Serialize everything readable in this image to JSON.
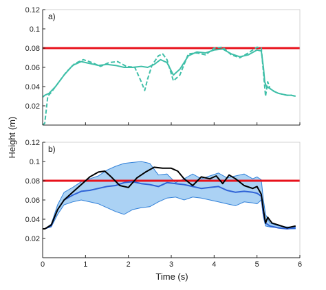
{
  "chart_data": [
    {
      "panel_label": "a)",
      "type": "line",
      "xlim": [
        0,
        6
      ],
      "ylim": [
        0,
        0.12
      ],
      "yticks": [
        "0.02",
        "0.04",
        "0.06",
        "0.08",
        "0.1",
        "0.12"
      ],
      "xtick_labels_shown": false,
      "grid": false,
      "colors": {
        "series": "#3fbfa8",
        "threshold": "#e8111b"
      },
      "threshold": 0.08,
      "series": [
        {
          "style": "solid",
          "x": [
            0,
            0.05,
            0.15,
            0.3,
            0.5,
            0.7,
            0.9,
            1.1,
            1.3,
            1.5,
            1.7,
            1.9,
            2.1,
            2.3,
            2.45,
            2.6,
            2.75,
            2.9,
            3.05,
            3.2,
            3.4,
            3.6,
            3.8,
            4.0,
            4.2,
            4.4,
            4.6,
            4.8,
            5.0,
            5.1,
            5.15,
            5.18,
            5.22,
            5.3,
            5.4,
            5.5,
            5.6,
            5.7,
            5.8,
            5.9
          ],
          "y": [
            0.029,
            0.031,
            0.033,
            0.04,
            0.052,
            0.062,
            0.066,
            0.064,
            0.062,
            0.063,
            0.062,
            0.06,
            0.06,
            0.061,
            0.06,
            0.063,
            0.068,
            0.065,
            0.052,
            0.058,
            0.072,
            0.076,
            0.075,
            0.078,
            0.079,
            0.074,
            0.071,
            0.073,
            0.078,
            0.077,
            0.06,
            0.045,
            0.04,
            0.038,
            0.035,
            0.033,
            0.032,
            0.031,
            0.031,
            0.03
          ]
        },
        {
          "style": "dashed",
          "x": [
            0,
            0.05,
            0.12,
            0.2,
            0.35,
            0.55,
            0.75,
            0.95,
            1.15,
            1.35,
            1.55,
            1.75,
            1.95,
            2.15,
            2.3,
            2.38,
            2.45,
            2.55,
            2.7,
            2.8,
            2.9,
            3.05,
            3.2,
            3.4,
            3.6,
            3.8,
            4.0,
            4.2,
            4.4,
            4.6,
            4.8,
            5.0,
            5.1,
            5.15,
            5.2,
            5.25,
            5.3,
            5.4,
            5.5,
            5.6,
            5.7,
            5.8,
            5.9
          ],
          "y": [
            0.0,
            0.002,
            0.03,
            0.034,
            0.043,
            0.055,
            0.064,
            0.068,
            0.065,
            0.061,
            0.065,
            0.066,
            0.061,
            0.06,
            0.045,
            0.036,
            0.048,
            0.062,
            0.072,
            0.074,
            0.068,
            0.046,
            0.052,
            0.074,
            0.075,
            0.073,
            0.08,
            0.081,
            0.073,
            0.07,
            0.075,
            0.081,
            0.08,
            0.055,
            0.03,
            0.045,
            0.038,
            0.035,
            0.033,
            0.032,
            0.031,
            0.031,
            0.03
          ]
        }
      ]
    },
    {
      "panel_label": "b)",
      "type": "line",
      "xlim": [
        0,
        6
      ],
      "ylim": [
        0,
        0.12
      ],
      "xticks": [
        "0",
        "1",
        "2",
        "3",
        "4",
        "5",
        "6"
      ],
      "yticks": [
        "0.02",
        "0.04",
        "0.06",
        "0.08",
        "0.1",
        "0.12"
      ],
      "grid": false,
      "colors": {
        "band": "#9ccaf2",
        "band_edge": "#2f7fd8",
        "mean": "#2f63d6",
        "black": "#000000",
        "threshold": "#e8111b"
      },
      "threshold": 0.08,
      "band": {
        "x": [
          0,
          0.05,
          0.2,
          0.35,
          0.5,
          0.7,
          0.9,
          1.1,
          1.3,
          1.5,
          1.7,
          1.9,
          2.1,
          2.3,
          2.5,
          2.7,
          2.9,
          3.1,
          3.3,
          3.5,
          3.7,
          3.9,
          4.1,
          4.3,
          4.5,
          4.7,
          4.9,
          5.0,
          5.1,
          5.15,
          5.2,
          5.3,
          5.5,
          5.7,
          5.9
        ],
        "upper": [
          0.03,
          0.03,
          0.035,
          0.055,
          0.068,
          0.073,
          0.079,
          0.082,
          0.085,
          0.091,
          0.095,
          0.098,
          0.099,
          0.1,
          0.098,
          0.086,
          0.087,
          0.078,
          0.082,
          0.087,
          0.082,
          0.085,
          0.088,
          0.083,
          0.085,
          0.087,
          0.082,
          0.084,
          0.081,
          0.06,
          0.045,
          0.036,
          0.033,
          0.032,
          0.032
        ],
        "lower": [
          0.03,
          0.03,
          0.032,
          0.045,
          0.055,
          0.058,
          0.06,
          0.058,
          0.056,
          0.052,
          0.048,
          0.045,
          0.05,
          0.052,
          0.053,
          0.058,
          0.062,
          0.063,
          0.06,
          0.063,
          0.062,
          0.06,
          0.058,
          0.056,
          0.054,
          0.058,
          0.057,
          0.056,
          0.06,
          0.042,
          0.033,
          0.032,
          0.031,
          0.03,
          0.03
        ]
      },
      "series": [
        {
          "style": "solid",
          "color_key": "mean",
          "x": [
            0,
            0.05,
            0.2,
            0.35,
            0.5,
            0.7,
            0.9,
            1.1,
            1.3,
            1.5,
            1.7,
            1.9,
            2.1,
            2.3,
            2.5,
            2.7,
            2.9,
            3.1,
            3.3,
            3.5,
            3.7,
            3.9,
            4.1,
            4.3,
            4.5,
            4.7,
            4.9,
            5.0,
            5.1,
            5.15,
            5.2,
            5.3,
            5.5,
            5.7,
            5.9
          ],
          "y": [
            0.03,
            0.03,
            0.033,
            0.05,
            0.06,
            0.065,
            0.069,
            0.07,
            0.072,
            0.074,
            0.075,
            0.078,
            0.079,
            0.077,
            0.076,
            0.074,
            0.078,
            0.077,
            0.076,
            0.074,
            0.072,
            0.073,
            0.074,
            0.07,
            0.068,
            0.069,
            0.068,
            0.067,
            0.064,
            0.045,
            0.036,
            0.033,
            0.031,
            0.03,
            0.031
          ]
        },
        {
          "style": "solid",
          "color_key": "black",
          "x": [
            0,
            0.05,
            0.2,
            0.35,
            0.5,
            0.7,
            0.9,
            1.1,
            1.3,
            1.45,
            1.6,
            1.8,
            2.0,
            2.2,
            2.4,
            2.6,
            2.8,
            3.0,
            3.15,
            3.3,
            3.5,
            3.7,
            3.9,
            4.05,
            4.2,
            4.35,
            4.5,
            4.7,
            4.9,
            5.0,
            5.1,
            5.15,
            5.2,
            5.25,
            5.35,
            5.5,
            5.7,
            5.9
          ],
          "y": [
            0.03,
            0.03,
            0.034,
            0.05,
            0.06,
            0.068,
            0.076,
            0.084,
            0.089,
            0.09,
            0.084,
            0.075,
            0.073,
            0.083,
            0.089,
            0.094,
            0.093,
            0.093,
            0.09,
            0.082,
            0.075,
            0.084,
            0.082,
            0.085,
            0.077,
            0.086,
            0.082,
            0.075,
            0.072,
            0.074,
            0.066,
            0.05,
            0.036,
            0.042,
            0.036,
            0.034,
            0.031,
            0.033
          ]
        }
      ]
    }
  ],
  "axes_labels": {
    "ylabel": "Height (m)",
    "xlabel": "Time (s)"
  }
}
